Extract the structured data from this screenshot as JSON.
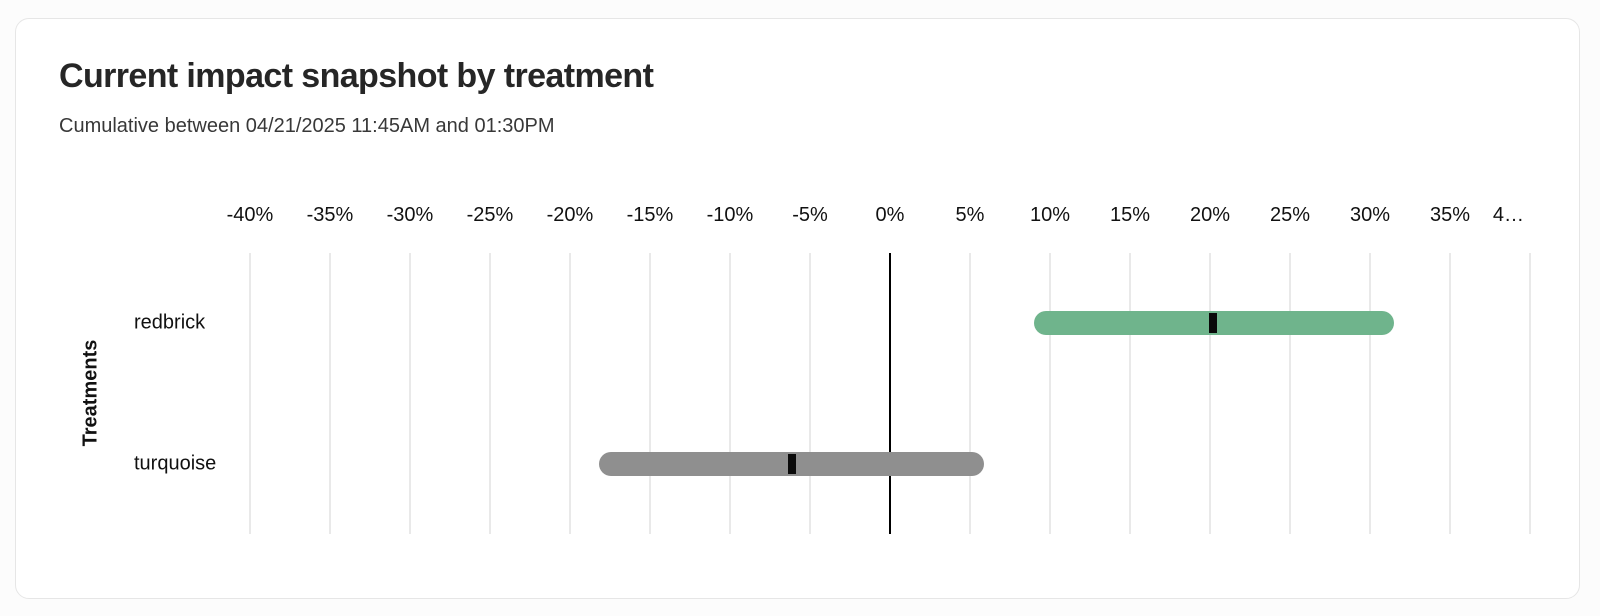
{
  "card": {
    "title": "Current impact snapshot by treatment",
    "subtitle": "Cumulative between 04/21/2025 11:45AM and 01:30PM",
    "background": "#ffffff",
    "border_color": "#e6e6e6"
  },
  "chart_data": {
    "type": "bar",
    "subtype": "horizontal_range_interval",
    "title": "Current impact snapshot by treatment",
    "subtitle": "Cumulative between 04/21/2025 11:45AM and 01:30PM",
    "xlabel": "",
    "ylabel": "Treatments",
    "x_axis": {
      "unit": "%",
      "min": -40,
      "max": 40,
      "step": 5,
      "tick_labels": [
        "-40%",
        "-35%",
        "-30%",
        "-25%",
        "-20%",
        "-15%",
        "-10%",
        "-5%",
        "0%",
        "5%",
        "10%",
        "15%",
        "20%",
        "25%",
        "30%",
        "35%",
        "4…"
      ],
      "zero_line": true
    },
    "categories": [
      "redbrick",
      "turquoise"
    ],
    "series": [
      {
        "name": "redbrick",
        "mean": 20.2,
        "ci_low": 9.0,
        "ci_high": 31.5,
        "color": "#6fb48c"
      },
      {
        "name": "turquoise",
        "mean": -6.1,
        "ci_low": -18.2,
        "ci_high": 5.9,
        "color": "#8f8f8f"
      }
    ],
    "grid": true,
    "legend": "none",
    "gridline_color": "#e9e9e9",
    "zero_line_color": "#000000",
    "mean_tick_color": "#0a0a0a"
  }
}
